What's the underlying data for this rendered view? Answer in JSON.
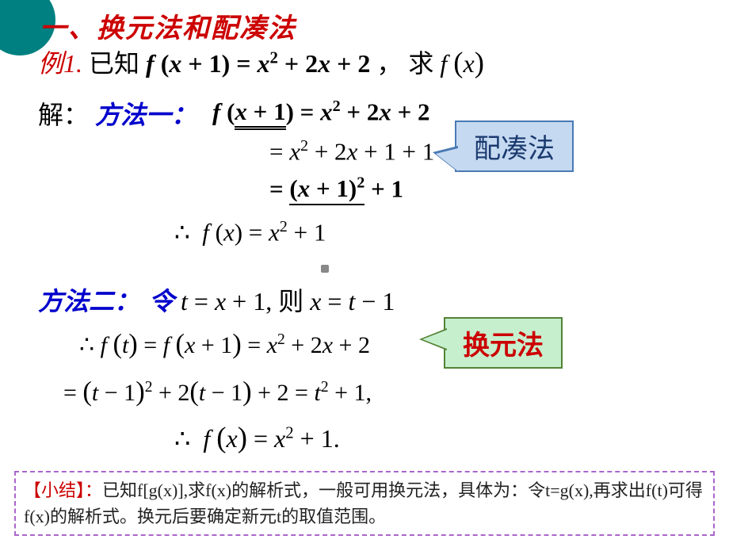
{
  "colors": {
    "title_red": "#cc0000",
    "method_blue": "#0000cc",
    "callout1_bg": "#c5d9f1",
    "callout1_border": "#4a7ab5",
    "callout1_text": "#1a3a6e",
    "callout2_bg": "#c6efce",
    "callout2_border": "#548235",
    "summary_border": "#aa66cc",
    "teal_corner": "#008080"
  },
  "title": "一、换元法和配凑法",
  "example": {
    "label": "例1.",
    "given_pre": " 已知 ",
    "given_math": "f (x + 1) = x² + 2x + 2",
    "given_post": "， 求 ",
    "target": "f (x)"
  },
  "solution_label": "解：",
  "method1": {
    "label": "方法一：",
    "eq1_lhs": "f (",
    "eq1_uline": "x + 1",
    "eq1_rhs": ") = x² + 2x + 2",
    "eq2": "= x² + 2x + 1 + 1",
    "eq3_pre": "= ",
    "eq3_uline": "(x + 1)²",
    "eq3_post": " + 1",
    "final": "∴  f (x) = x² + 1"
  },
  "callout1_text": "配凑法",
  "method2": {
    "label": "方法二：",
    "let": "令",
    "subst_a": " t = x + 1, ",
    "then": "则",
    "subst_b": " x = t − 1",
    "eq1": "∴ f ( t ) = f ( x + 1) = x² + 2x + 2",
    "eq2": "= ( t − 1)² + 2( t − 1) + 2 = t² + 1,",
    "final": "∴  f ( x ) = x² + 1."
  },
  "callout2_text": "换元法",
  "summary": {
    "label": "【小结】：",
    "body": "已知f[g(x)],求f(x)的解析式，一般可用换元法，具体为：令t=g(x),再求出f(t)可得f(x)的解析式。换元后要确定新元t的取值范围。"
  }
}
